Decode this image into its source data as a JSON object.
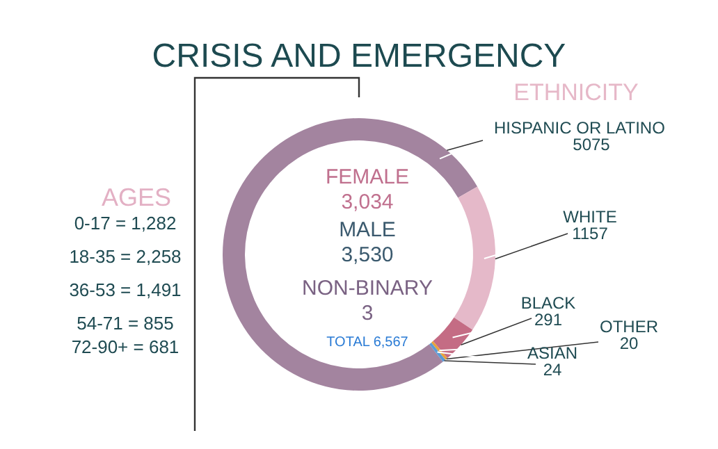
{
  "chart_data": {
    "type": "donut",
    "title": "CRISIS AND EMERGENCY",
    "legend_title": "ETHNICITY",
    "categories": [
      "HISPANIC OR LATINO",
      "WHITE",
      "BLACK",
      "OTHER",
      "ASIAN"
    ],
    "values": [
      5075,
      1157,
      291,
      20,
      24
    ],
    "colors": [
      "#a3849f",
      "#e5b9c9",
      "#c46c84",
      "#e8a23c",
      "#5b9bd5"
    ],
    "data_labels": true,
    "annotations": [
      "AGES",
      "0-17 = 1,282",
      "18-35 = 2,258",
      "36-53 = 1,491",
      "54-71 = 855",
      "72-90+ = 681",
      "FEMALE",
      "3,034",
      "MALE",
      "3,530",
      "NON-BINARY",
      "3",
      "TOTAL 6,567"
    ]
  }
}
